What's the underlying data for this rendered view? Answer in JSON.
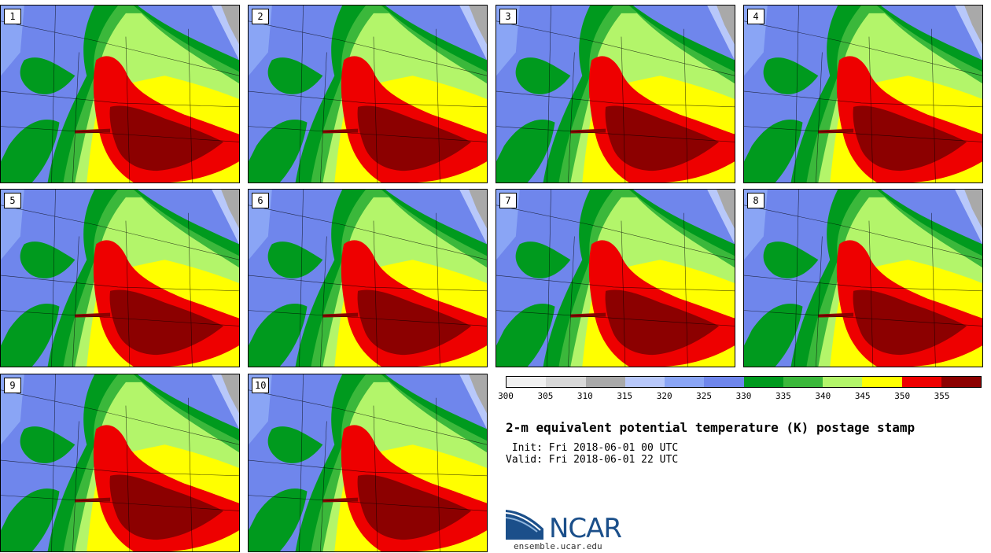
{
  "figure": {
    "title": "2-m equivalent potential temperature (K) postage stamp",
    "init": " Init: Fri 2018-06-01 00 UTC",
    "valid": "Valid: Fri 2018-06-01 22 UTC"
  },
  "panels": [
    "1",
    "2",
    "3",
    "4",
    "5",
    "6",
    "7",
    "8",
    "9",
    "10"
  ],
  "colorbar": {
    "ticks": [
      "300",
      "305",
      "310",
      "315",
      "320",
      "325",
      "330",
      "335",
      "340",
      "345",
      "350",
      "355"
    ],
    "colors": [
      "#f0f0f0",
      "#d8d8d8",
      "#a9a9a9",
      "#b8c8fa",
      "#8aa5f5",
      "#6f86ec",
      "#009a1e",
      "#3bb83b",
      "#b3f56a",
      "#ffff00",
      "#ee0000",
      "#8c0000"
    ]
  },
  "branding": {
    "logo_text": "NCAR",
    "url": "ensemble.ucar.edu"
  }
}
